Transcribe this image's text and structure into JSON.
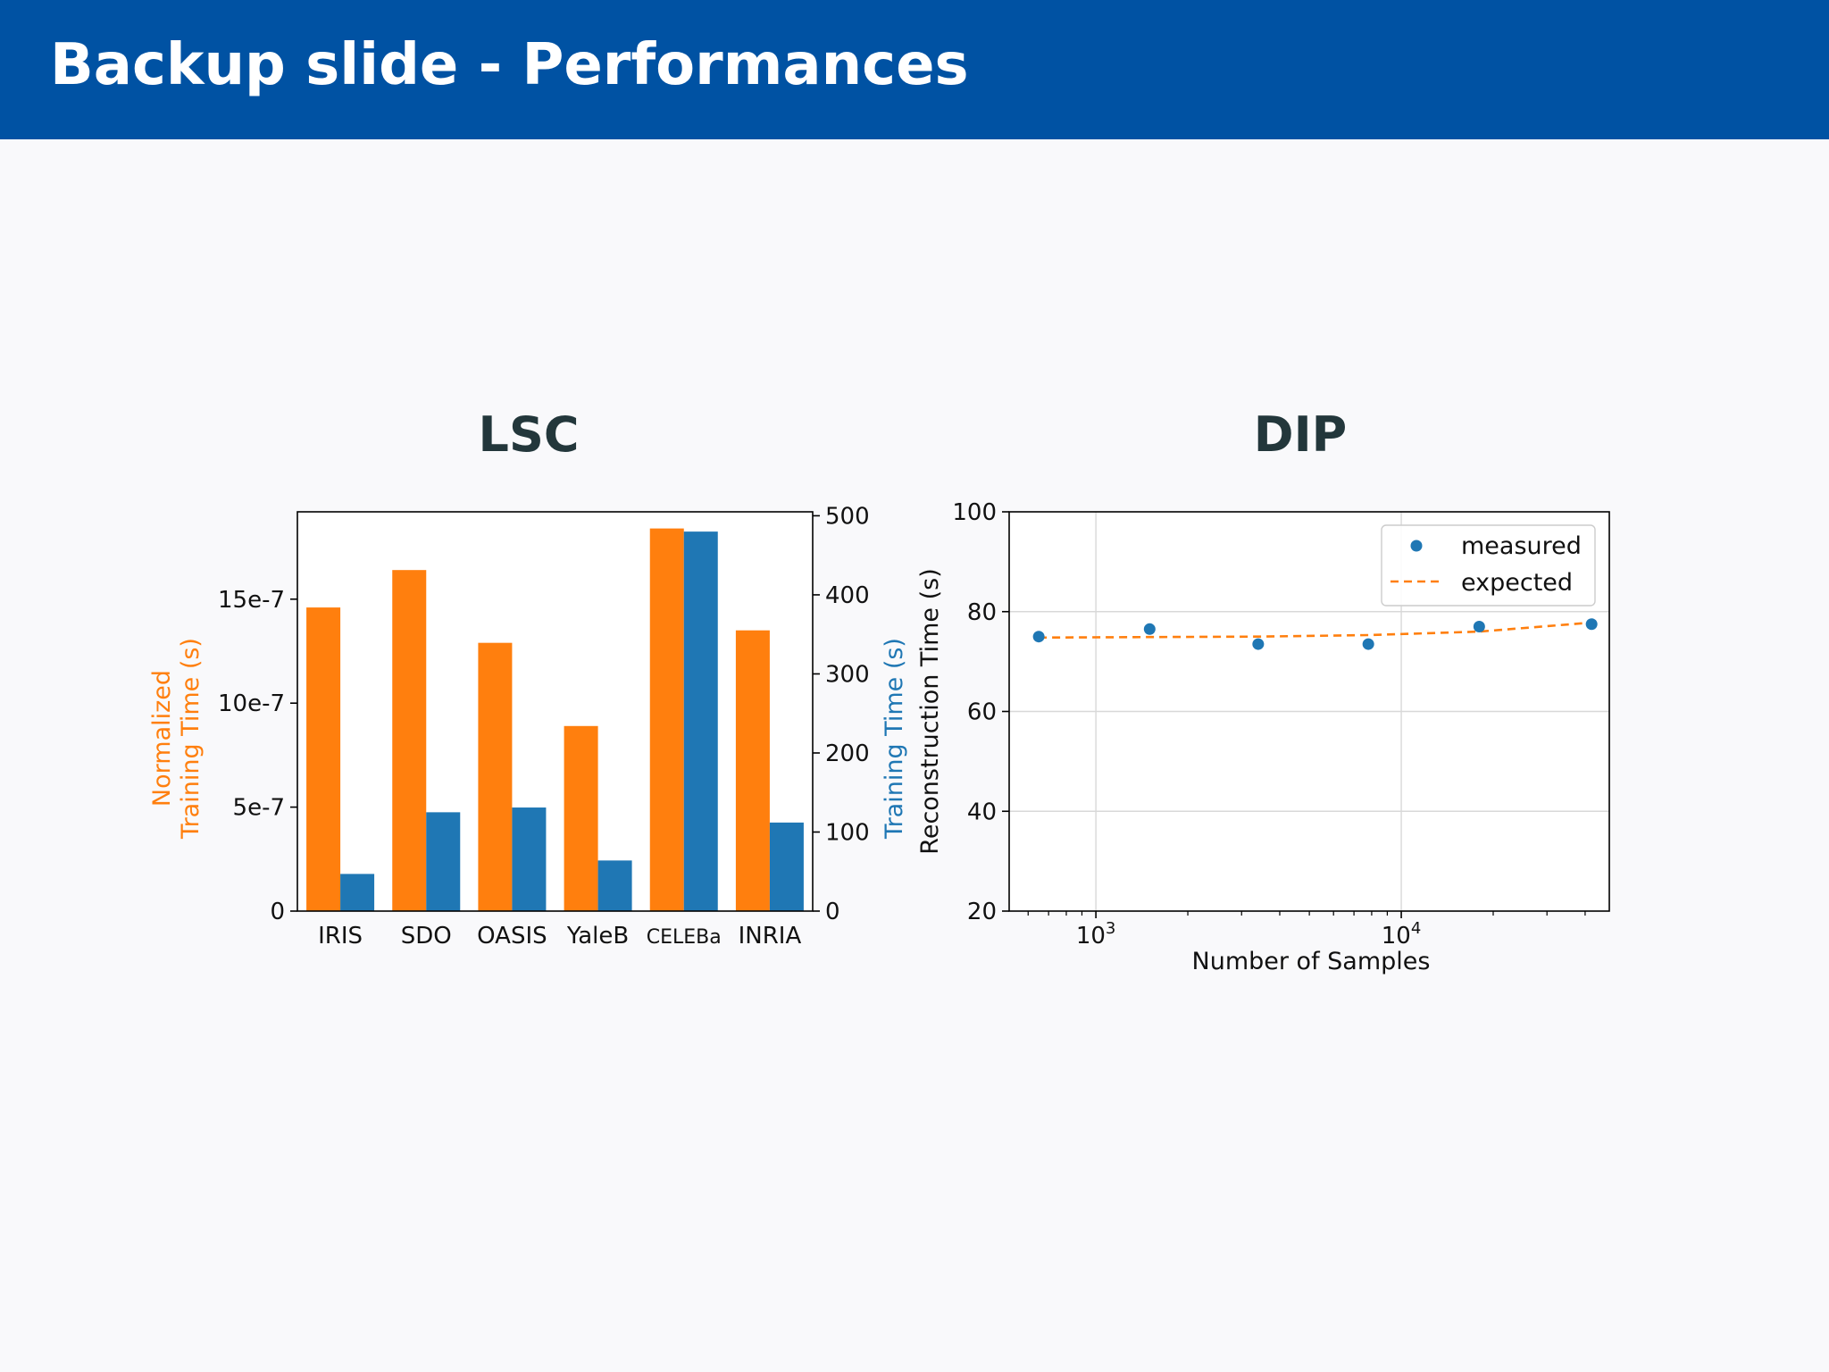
{
  "slide": {
    "title": "Backup slide - Performances"
  },
  "panels": {
    "left_title": "LSC",
    "right_title": "DIP"
  },
  "colors": {
    "header": "#0052a3",
    "orange": "#ff7f0e",
    "blue": "#1f77b4",
    "title_text": "#23373b"
  },
  "chart_data": [
    {
      "type": "bar",
      "title": "LSC",
      "categories": [
        "IRIS",
        "SDO",
        "OASIS",
        "YaleB",
        "CELEBa",
        "INRIA"
      ],
      "series": [
        {
          "axis": "left",
          "color": "#ff7f0e",
          "values": [
            1.46e-06,
            1.64e-06,
            1.29e-06,
            8.9e-07,
            1.84e-06,
            1.35e-06
          ]
        },
        {
          "axis": "right",
          "color": "#1f77b4",
          "values": [
            47,
            125,
            131,
            64,
            480,
            112
          ]
        }
      ],
      "ylabel_left": [
        "Normalized",
        "Training Time (s)"
      ],
      "ylabel_right": "Training Time (s)",
      "ylim_left": [
        0,
        1.92e-06
      ],
      "ylim_right": [
        0,
        505
      ],
      "yticks_left": [
        {
          "value": 0,
          "label": "0"
        },
        {
          "value": 5e-07,
          "label": "5e-7"
        },
        {
          "value": 1e-06,
          "label": "10e-7"
        },
        {
          "value": 1.5e-06,
          "label": "15e-7"
        }
      ],
      "yticks_right": [
        {
          "value": 0,
          "label": "0"
        },
        {
          "value": 100,
          "label": "100"
        },
        {
          "value": 200,
          "label": "200"
        },
        {
          "value": 300,
          "label": "300"
        },
        {
          "value": 400,
          "label": "400"
        },
        {
          "value": 500,
          "label": "500"
        }
      ],
      "grid": false
    },
    {
      "type": "scatter",
      "title": "DIP",
      "xscale": "log",
      "xlim": [
        520,
        48000
      ],
      "ylim": [
        20,
        100
      ],
      "xlabel": "Number of Samples",
      "ylabel": "Reconstruction Time (s)",
      "xticks": [
        {
          "value": 1000,
          "base": "10",
          "exp": "3"
        },
        {
          "value": 10000,
          "base": "10",
          "exp": "4"
        }
      ],
      "yticks": [
        20,
        40,
        60,
        80,
        100
      ],
      "grid": true,
      "legend_position": "top-right",
      "series": [
        {
          "name": "measured",
          "style": "markers",
          "color": "#1f77b4",
          "x": [
            650,
            1500,
            3400,
            7800,
            18000,
            42000
          ],
          "y": [
            75,
            76.5,
            73.5,
            73.5,
            77,
            77.5
          ]
        },
        {
          "name": "expected",
          "style": "dashed",
          "color": "#ff7f0e",
          "x": [
            650,
            1500,
            3400,
            7800,
            18000,
            42000
          ],
          "y": [
            74.8,
            74.9,
            75.0,
            75.3,
            76.0,
            77.8
          ]
        }
      ]
    }
  ]
}
